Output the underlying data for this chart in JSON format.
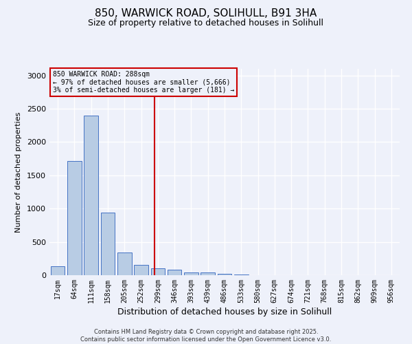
{
  "title_line1": "850, WARWICK ROAD, SOLIHULL, B91 3HA",
  "title_line2": "Size of property relative to detached houses in Solihull",
  "xlabel": "Distribution of detached houses by size in Solihull",
  "ylabel": "Number of detached properties",
  "categories": [
    "17sqm",
    "64sqm",
    "111sqm",
    "158sqm",
    "205sqm",
    "252sqm",
    "299sqm",
    "346sqm",
    "393sqm",
    "439sqm",
    "486sqm",
    "533sqm",
    "580sqm",
    "627sqm",
    "674sqm",
    "721sqm",
    "768sqm",
    "815sqm",
    "862sqm",
    "909sqm",
    "956sqm"
  ],
  "values": [
    130,
    1720,
    2400,
    940,
    340,
    160,
    100,
    85,
    45,
    40,
    20,
    8,
    5,
    3,
    2,
    1,
    1,
    0,
    0,
    0,
    0
  ],
  "bar_color": "#b8cce4",
  "bar_edge_color": "#4472c4",
  "vline_x": 5.78,
  "vline_color": "#cc0000",
  "annotation_title": "850 WARWICK ROAD: 288sqm",
  "annotation_line1": "← 97% of detached houses are smaller (5,666)",
  "annotation_line2": "3% of semi-detached houses are larger (181) →",
  "annotation_box_color": "#cc0000",
  "ylim": [
    0,
    3100
  ],
  "yticks": [
    0,
    500,
    1000,
    1500,
    2000,
    2500,
    3000
  ],
  "background_color": "#eef1fa",
  "grid_color": "#ffffff",
  "footer_line1": "Contains HM Land Registry data © Crown copyright and database right 2025.",
  "footer_line2": "Contains public sector information licensed under the Open Government Licence v3.0."
}
